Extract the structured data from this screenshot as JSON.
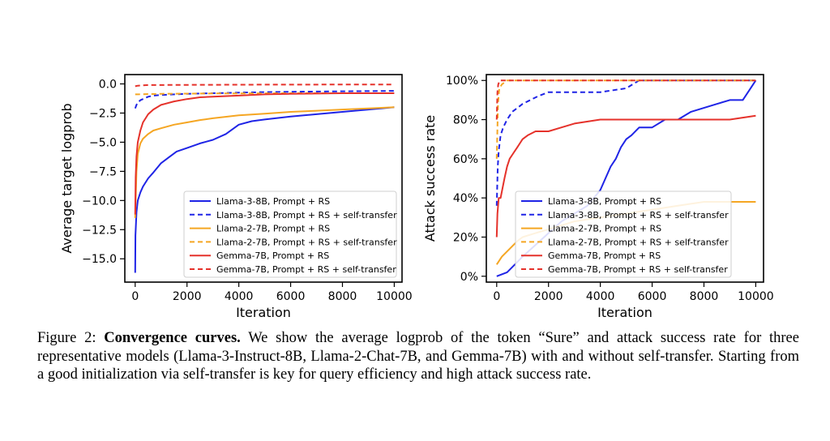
{
  "colors": {
    "blue": "#1f24e6",
    "orange": "#f5a623",
    "red": "#e5322b"
  },
  "chart_data": [
    {
      "type": "line",
      "xlabel": "Iteration",
      "ylabel": "Average target logprob",
      "xlim": [
        -400,
        10300
      ],
      "ylim": [
        -17,
        0.8
      ],
      "xticks": [
        "0",
        "2000",
        "4000",
        "6000",
        "8000",
        "10000"
      ],
      "yticks": [
        "0.0",
        "−2.5",
        "−5.0",
        "−7.5",
        "−10.0",
        "−12.5",
        "−15.0"
      ],
      "legend_position": "lower-right",
      "series": [
        {
          "name": "Llama-3-8B, Prompt + RS",
          "color": "blue",
          "dash": false,
          "x": [
            0,
            10,
            50,
            100,
            200,
            300,
            500,
            700,
            1000,
            1300,
            1600,
            2000,
            2500,
            3000,
            3500,
            4000,
            4500,
            5000,
            6000,
            7000,
            8000,
            9000,
            10000
          ],
          "y": [
            -16.2,
            -13.0,
            -11.0,
            -10.0,
            -9.3,
            -8.8,
            -8.1,
            -7.6,
            -6.8,
            -6.3,
            -5.8,
            -5.5,
            -5.1,
            -4.8,
            -4.3,
            -3.5,
            -3.2,
            -3.05,
            -2.8,
            -2.6,
            -2.4,
            -2.2,
            -2.0
          ]
        },
        {
          "name": "Llama-3-8B, Prompt + RS + self-transfer",
          "color": "blue",
          "dash": true,
          "x": [
            0,
            50,
            100,
            200,
            300,
            500,
            700,
            1000,
            2000,
            3000,
            5000,
            7000,
            10000
          ],
          "y": [
            -2.1,
            -1.8,
            -1.6,
            -1.4,
            -1.3,
            -1.1,
            -1.0,
            -0.95,
            -0.85,
            -0.8,
            -0.7,
            -0.65,
            -0.6
          ]
        },
        {
          "name": "Llama-2-7B, Prompt + RS",
          "color": "orange",
          "dash": false,
          "x": [
            0,
            50,
            100,
            200,
            300,
            500,
            700,
            1000,
            1500,
            2000,
            2500,
            3000,
            4000,
            5000,
            6000,
            7000,
            8000,
            9000,
            10000
          ],
          "y": [
            -11.5,
            -7.5,
            -6.0,
            -5.1,
            -4.7,
            -4.3,
            -4.0,
            -3.8,
            -3.5,
            -3.3,
            -3.1,
            -2.95,
            -2.7,
            -2.55,
            -2.4,
            -2.3,
            -2.2,
            -2.1,
            -2.0
          ]
        },
        {
          "name": "Llama-2-7B, Prompt + RS + self-transfer",
          "color": "orange",
          "dash": true,
          "x": [
            0,
            100,
            300,
            1000,
            3000,
            6000,
            10000
          ],
          "y": [
            -0.9,
            -0.9,
            -0.88,
            -0.85,
            -0.82,
            -0.8,
            -0.8
          ]
        },
        {
          "name": "Gemma-7B, Prompt + RS",
          "color": "red",
          "dash": false,
          "x": [
            0,
            20,
            50,
            100,
            200,
            300,
            500,
            700,
            1000,
            1500,
            2000,
            2500,
            3000,
            4000,
            5000,
            6000,
            8000,
            10000
          ],
          "y": [
            -11.2,
            -8.0,
            -6.2,
            -5.0,
            -4.0,
            -3.3,
            -2.6,
            -2.2,
            -1.8,
            -1.5,
            -1.3,
            -1.15,
            -1.1,
            -1.0,
            -0.9,
            -0.85,
            -0.8,
            -0.8
          ]
        },
        {
          "name": "Gemma-7B, Prompt + RS + self-transfer",
          "color": "red",
          "dash": true,
          "x": [
            0,
            100,
            500,
            2000,
            5000,
            10000
          ],
          "y": [
            -0.2,
            -0.15,
            -0.1,
            -0.08,
            -0.06,
            -0.05
          ]
        }
      ]
    },
    {
      "type": "line",
      "xlabel": "Iteration",
      "ylabel": "Attack success rate",
      "xlim": [
        -400,
        10300
      ],
      "ylim": [
        -3,
        103
      ],
      "xticks": [
        "0",
        "2000",
        "4000",
        "6000",
        "8000",
        "10000"
      ],
      "yticks": [
        "0%",
        "20%",
        "40%",
        "60%",
        "80%",
        "100%"
      ],
      "legend_position": "lower-right",
      "series": [
        {
          "name": "Llama-3-8B, Prompt + RS",
          "color": "blue",
          "dash": false,
          "x": [
            0,
            400,
            700,
            1000,
            1500,
            2000,
            2500,
            3000,
            3500,
            4000,
            4200,
            4400,
            4600,
            4800,
            5000,
            5200,
            5500,
            5800,
            6000,
            6500,
            7000,
            7500,
            8000,
            8500,
            9000,
            9500,
            9800,
            10000
          ],
          "y": [
            0,
            2,
            6,
            10,
            16,
            22,
            28,
            32,
            36,
            44,
            50,
            56,
            60,
            66,
            70,
            72,
            76,
            76,
            76,
            80,
            80,
            84,
            86,
            88,
            90,
            90,
            96,
            100
          ]
        },
        {
          "name": "Llama-3-8B, Prompt + RS + self-transfer",
          "color": "blue",
          "dash": true,
          "x": [
            0,
            40,
            80,
            150,
            250,
            400,
            600,
            800,
            1000,
            1300,
            1600,
            2000,
            3000,
            4000,
            5000,
            5500,
            6000,
            8000,
            10000
          ],
          "y": [
            36,
            56,
            64,
            72,
            76,
            80,
            84,
            86,
            88,
            90,
            92,
            94,
            94,
            94,
            96,
            100,
            100,
            100,
            100
          ]
        },
        {
          "name": "Llama-2-7B, Prompt + RS",
          "color": "orange",
          "dash": false,
          "x": [
            0,
            100,
            200,
            500,
            800,
            1000,
            1500,
            2000,
            2500,
            3000,
            4000,
            5000,
            6000,
            7000,
            8000,
            10000
          ],
          "y": [
            6,
            8,
            10,
            14,
            18,
            20,
            22,
            24,
            26,
            28,
            30,
            32,
            34,
            36,
            38,
            38
          ]
        },
        {
          "name": "Llama-2-7B, Prompt + RS + self-transfer",
          "color": "orange",
          "dash": true,
          "x": [
            0,
            50,
            100,
            200,
            400,
            10000
          ],
          "y": [
            60,
            88,
            96,
            98,
            100,
            100
          ]
        },
        {
          "name": "Gemma-7B, Prompt + RS",
          "color": "red",
          "dash": false,
          "x": [
            0,
            30,
            80,
            150,
            300,
            400,
            500,
            600,
            700,
            800,
            900,
            1000,
            1200,
            1500,
            2000,
            2500,
            3000,
            4000,
            5000,
            6000,
            7000,
            8000,
            9000,
            10000
          ],
          "y": [
            20,
            32,
            40,
            40,
            50,
            56,
            60,
            62,
            64,
            66,
            68,
            70,
            72,
            74,
            74,
            76,
            78,
            80,
            80,
            80,
            80,
            80,
            80,
            82
          ]
        },
        {
          "name": "Gemma-7B, Prompt + RS + self-transfer",
          "color": "red",
          "dash": true,
          "x": [
            0,
            30,
            60,
            120,
            250,
            10000
          ],
          "y": [
            80,
            94,
            98,
            100,
            100,
            100
          ]
        }
      ]
    }
  ],
  "caption": {
    "label": "Figure 2:",
    "title": "Convergence curves.",
    "text": "We show the average logprob of the token “Sure” and attack success rate for three representative models (Llama-3-Instruct-8B, Llama-2-Chat-7B, and Gemma-7B) with and without self-transfer. Starting from a good initialization via self-transfer is key for query efficiency and high attack success rate."
  }
}
